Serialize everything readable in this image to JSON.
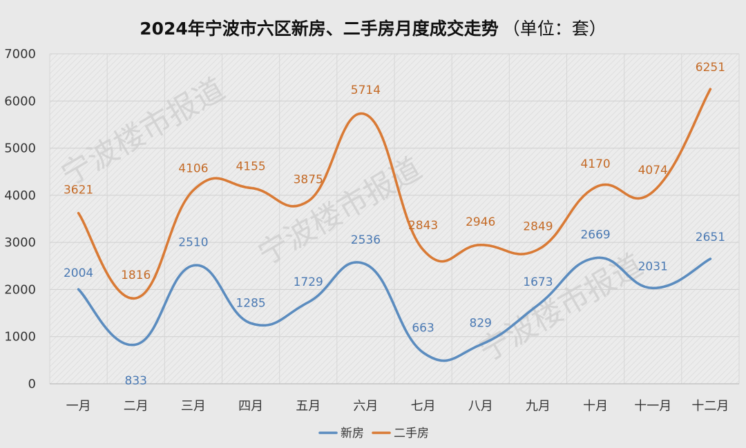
{
  "chart_data": {
    "type": "line",
    "title": "2024年宁波市六区新房、二手房月度成交走势",
    "subtitle": "（单位：套）",
    "categories": [
      "一月",
      "二月",
      "三月",
      "四月",
      "五月",
      "六月",
      "七月",
      "八月",
      "九月",
      "十月",
      "十一月",
      "十二月"
    ],
    "series": [
      {
        "name": "新房",
        "color": "#5b8cbf",
        "values": [
          2004,
          833,
          2510,
          1285,
          1729,
          2536,
          663,
          829,
          1673,
          2669,
          2031,
          2651
        ]
      },
      {
        "name": "二手房",
        "color": "#d97a35",
        "values": [
          3621,
          1816,
          4106,
          4155,
          3875,
          5714,
          2843,
          2946,
          2849,
          4170,
          4074,
          6251
        ]
      }
    ],
    "ylim": [
      0,
      7000
    ],
    "yticks": [
      0,
      1000,
      2000,
      3000,
      4000,
      5000,
      6000,
      7000
    ],
    "grid": true,
    "legend_position": "bottom",
    "smooth": true,
    "watermark": "宁波楼市报道"
  }
}
